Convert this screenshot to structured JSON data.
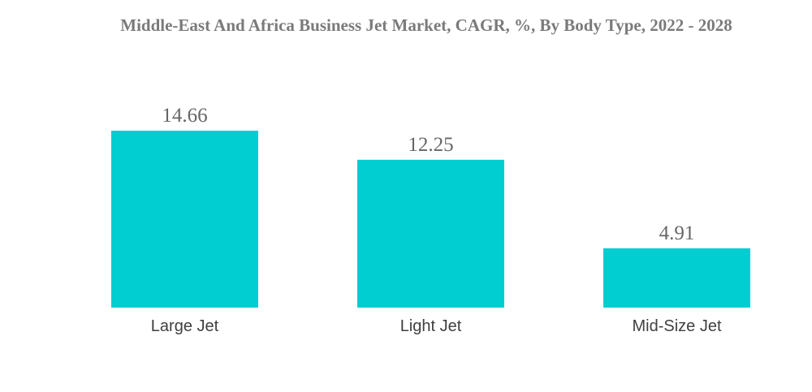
{
  "chart_data": {
    "type": "bar",
    "title": "Middle-East And Africa Business Jet Market, CAGR, %, By Body Type, 2022 - 2028",
    "categories": [
      "Large Jet",
      "Light Jet",
      "Mid-Size Jet"
    ],
    "values": [
      14.66,
      12.25,
      4.91
    ],
    "value_labels": [
      "14.66",
      "12.25",
      "4.91"
    ],
    "xlabel": "",
    "ylabel": "",
    "ylim": [
      0,
      14.66
    ],
    "grid": false,
    "legend": "none",
    "bar_color": "#00CED1"
  }
}
